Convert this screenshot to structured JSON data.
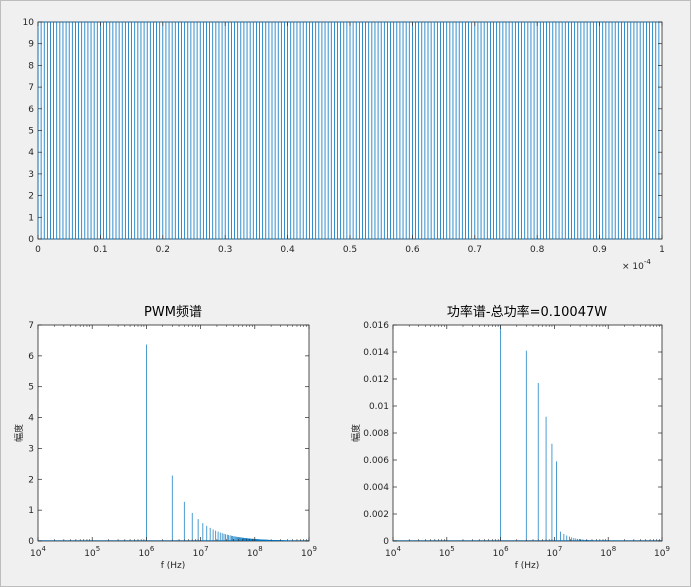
{
  "figure": {
    "background": "#f0f0f0",
    "axes_background": "#ffffff",
    "line_color": "#0072bd",
    "axis_color": "#262626"
  },
  "chart_data": [
    {
      "type": "line",
      "title": "",
      "xlabel": "",
      "ylabel": "",
      "xlim": [
        0,
        1
      ],
      "ylim": [
        0,
        10
      ],
      "x_exponent_label": "× 10",
      "x_exponent_power": "-4",
      "x_ticks": [
        "0",
        "0.1",
        "0.2",
        "0.3",
        "0.4",
        "0.5",
        "0.6",
        "0.7",
        "0.8",
        "0.9",
        "1"
      ],
      "y_ticks": [
        "0",
        "1",
        "2",
        "3",
        "4",
        "5",
        "6",
        "7",
        "8",
        "9",
        "10"
      ],
      "series": [
        {
          "description_kind": "pwm_square_wave",
          "low": 0,
          "high": 10,
          "cycles": 100,
          "duty": 0.5
        }
      ],
      "grid": false
    },
    {
      "type": "bar",
      "title": "PWM频谱",
      "xlabel": "f (Hz)",
      "ylabel": "幅度",
      "xscale": "log",
      "xlim": [
        10000,
        1000000000
      ],
      "ylim": [
        0,
        7
      ],
      "x_ticks": [
        {
          "base": "10",
          "exp": "4"
        },
        {
          "base": "10",
          "exp": "5"
        },
        {
          "base": "10",
          "exp": "6"
        },
        {
          "base": "10",
          "exp": "7"
        },
        {
          "base": "10",
          "exp": "8"
        },
        {
          "base": "10",
          "exp": "9"
        }
      ],
      "y_ticks": [
        "0",
        "1",
        "2",
        "3",
        "4",
        "5",
        "6",
        "7"
      ],
      "fundamental_hz": 1000000,
      "harmonics": "odd",
      "max_harmonic": 499,
      "values_rule": "amplitude = 6.366 / n (n odd)",
      "values_first": [
        {
          "f": 1000000,
          "y": 6.37
        },
        {
          "f": 3000000,
          "y": 2.12
        },
        {
          "f": 5000000,
          "y": 1.27
        },
        {
          "f": 7000000,
          "y": 0.91
        },
        {
          "f": 9000000,
          "y": 0.71
        },
        {
          "f": 11000000,
          "y": 0.58
        }
      ],
      "grid": false
    },
    {
      "type": "bar",
      "title": "功率谱-总功率=0.10047W",
      "xlabel": "f (Hz)",
      "ylabel": "幅度",
      "xscale": "log",
      "xlim": [
        10000,
        1000000000
      ],
      "ylim": [
        0,
        0.016
      ],
      "x_ticks": [
        {
          "base": "10",
          "exp": "4"
        },
        {
          "base": "10",
          "exp": "5"
        },
        {
          "base": "10",
          "exp": "6"
        },
        {
          "base": "10",
          "exp": "7"
        },
        {
          "base": "10",
          "exp": "8"
        },
        {
          "base": "10",
          "exp": "9"
        }
      ],
      "y_ticks": [
        "0",
        "0.002",
        "0.004",
        "0.006",
        "0.008",
        "0.01",
        "0.012",
        "0.014",
        "0.016"
      ],
      "fundamental_hz": 1000000,
      "harmonics": "odd",
      "max_harmonic": 499,
      "values_rule": "power = 0.0405 / n^1.0 scaled, first bar clipped at top",
      "values_first": [
        {
          "f": 1000000,
          "y": 0.016
        },
        {
          "f": 3000000,
          "y": 0.0141
        },
        {
          "f": 5000000,
          "y": 0.0117
        },
        {
          "f": 7000000,
          "y": 0.0092
        },
        {
          "f": 9000000,
          "y": 0.0072
        },
        {
          "f": 11000000,
          "y": 0.0059
        }
      ],
      "grid": false
    }
  ]
}
